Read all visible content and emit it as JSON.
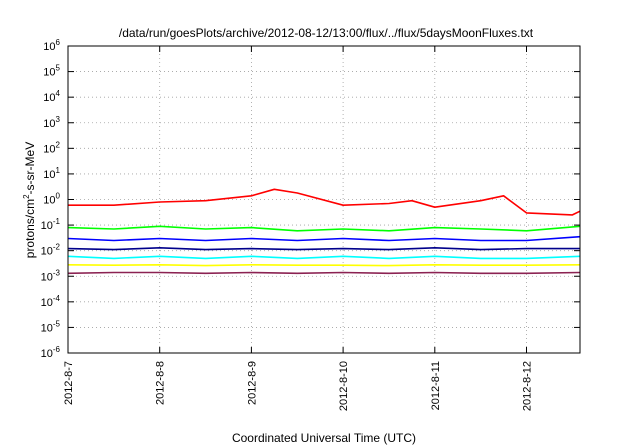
{
  "chart_data": {
    "type": "line",
    "title": "/data/run/goesPlots/archive/2012-08-12/13:00/flux/../flux/5daysMoonFluxes.txt",
    "xlabel": "Coordinated Universal Time (UTC)",
    "ylabel": "protons/cm2-s-sr-MeV",
    "ylabel_parts": {
      "base": "protons/cm",
      "sup": "2",
      "rest": "-s-sr-MeV"
    },
    "yscale": "log",
    "ylim": [
      1e-06,
      1000000.0
    ],
    "y_ticks": [
      {
        "value": -6,
        "base": "10",
        "exp": "-6"
      },
      {
        "value": -5,
        "base": "10",
        "exp": "-5"
      },
      {
        "value": -4,
        "base": "10",
        "exp": "-4"
      },
      {
        "value": -3,
        "base": "10",
        "exp": "-3"
      },
      {
        "value": -2,
        "base": "10",
        "exp": "-2"
      },
      {
        "value": -1,
        "base": "10",
        "exp": "-1"
      },
      {
        "value": 0,
        "base": "10",
        "exp": "0"
      },
      {
        "value": 1,
        "base": "10",
        "exp": "1"
      },
      {
        "value": 2,
        "base": "10",
        "exp": "2"
      },
      {
        "value": 3,
        "base": "10",
        "exp": "3"
      },
      {
        "value": 4,
        "base": "10",
        "exp": "4"
      },
      {
        "value": 5,
        "base": "10",
        "exp": "5"
      },
      {
        "value": 6,
        "base": "10",
        "exp": "6"
      }
    ],
    "xlim": [
      "2012-08-07",
      "2012-08-12 14:00"
    ],
    "x_ticks": [
      "2012-8-7",
      "2012-8-8",
      "2012-8-9",
      "2012-8-10",
      "2012-8-11",
      "2012-8-12"
    ],
    "grid": true,
    "legend": "none",
    "series": [
      {
        "color": "#ff0000",
        "x": [
          "2012-08-07",
          "2012-08-07 12:00",
          "2012-08-08",
          "2012-08-08 12:00",
          "2012-08-09",
          "2012-08-09 06:00",
          "2012-08-09 12:00",
          "2012-08-10",
          "2012-08-10 12:00",
          "2012-08-10 18:00",
          "2012-08-11",
          "2012-08-11 12:00",
          "2012-08-11 18:00",
          "2012-08-12",
          "2012-08-12 12:00",
          "2012-08-12 14:00"
        ],
        "values": [
          0.6,
          0.6,
          0.8,
          0.9,
          1.4,
          2.5,
          1.8,
          0.6,
          0.7,
          0.9,
          0.5,
          0.9,
          1.4,
          0.3,
          0.25,
          0.35
        ]
      },
      {
        "color": "#00ff00",
        "x": [
          "2012-08-07",
          "2012-08-07 12:00",
          "2012-08-08",
          "2012-08-08 12:00",
          "2012-08-09",
          "2012-08-09 12:00",
          "2012-08-10",
          "2012-08-10 12:00",
          "2012-08-11",
          "2012-08-11 12:00",
          "2012-08-12",
          "2012-08-12 14:00"
        ],
        "values": [
          0.08,
          0.07,
          0.09,
          0.07,
          0.08,
          0.06,
          0.07,
          0.06,
          0.08,
          0.07,
          0.06,
          0.09
        ]
      },
      {
        "color": "#0000ff",
        "x": [
          "2012-08-07",
          "2012-08-07 12:00",
          "2012-08-08",
          "2012-08-08 12:00",
          "2012-08-09",
          "2012-08-09 12:00",
          "2012-08-10",
          "2012-08-10 12:00",
          "2012-08-11",
          "2012-08-11 12:00",
          "2012-08-12",
          "2012-08-12 14:00"
        ],
        "values": [
          0.03,
          0.025,
          0.03,
          0.025,
          0.03,
          0.025,
          0.03,
          0.025,
          0.03,
          0.025,
          0.025,
          0.035
        ]
      },
      {
        "color": "#00008b",
        "x": [
          "2012-08-07",
          "2012-08-07 12:00",
          "2012-08-08",
          "2012-08-08 12:00",
          "2012-08-09",
          "2012-08-09 12:00",
          "2012-08-10",
          "2012-08-10 12:00",
          "2012-08-11",
          "2012-08-11 12:00",
          "2012-08-12",
          "2012-08-12 14:00"
        ],
        "values": [
          0.012,
          0.011,
          0.013,
          0.011,
          0.012,
          0.011,
          0.012,
          0.011,
          0.013,
          0.011,
          0.012,
          0.012
        ]
      },
      {
        "color": "#00ffff",
        "x": [
          "2012-08-07",
          "2012-08-07 12:00",
          "2012-08-08",
          "2012-08-08 12:00",
          "2012-08-09",
          "2012-08-09 12:00",
          "2012-08-10",
          "2012-08-10 12:00",
          "2012-08-11",
          "2012-08-11 12:00",
          "2012-08-12",
          "2012-08-12 14:00"
        ],
        "values": [
          0.006,
          0.005,
          0.006,
          0.005,
          0.006,
          0.005,
          0.006,
          0.005,
          0.006,
          0.005,
          0.005,
          0.006
        ]
      },
      {
        "color": "#ffff00",
        "x": [
          "2012-08-07",
          "2012-08-07 12:00",
          "2012-08-08",
          "2012-08-08 12:00",
          "2012-08-09",
          "2012-08-09 12:00",
          "2012-08-10",
          "2012-08-10 12:00",
          "2012-08-11",
          "2012-08-11 12:00",
          "2012-08-12",
          "2012-08-12 14:00"
        ],
        "values": [
          0.0028,
          0.0027,
          0.0028,
          0.0026,
          0.0028,
          0.0027,
          0.0027,
          0.0026,
          0.0028,
          0.0027,
          0.0027,
          0.0028
        ]
      },
      {
        "color": "#8b2252",
        "x": [
          "2012-08-07",
          "2012-08-07 12:00",
          "2012-08-08",
          "2012-08-08 12:00",
          "2012-08-09",
          "2012-08-09 12:00",
          "2012-08-10",
          "2012-08-10 12:00",
          "2012-08-11",
          "2012-08-11 12:00",
          "2012-08-12",
          "2012-08-12 14:00"
        ],
        "values": [
          0.0013,
          0.0014,
          0.0014,
          0.0013,
          0.0014,
          0.0013,
          0.0014,
          0.0013,
          0.0014,
          0.0013,
          0.0013,
          0.0014
        ]
      }
    ]
  }
}
